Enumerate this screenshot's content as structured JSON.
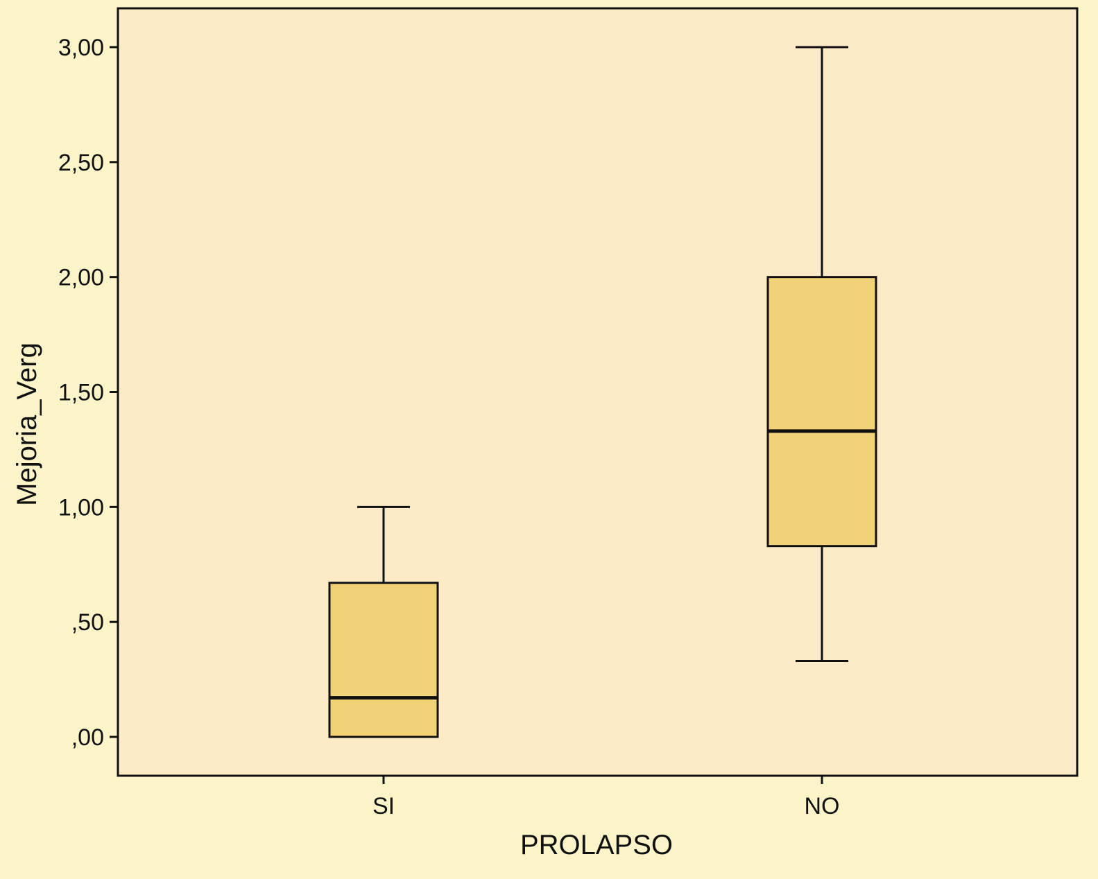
{
  "chart_data": {
    "type": "boxplot",
    "xlabel": "PROLAPSO",
    "ylabel": "Mejoria_Verg",
    "ylim": [
      -0.17,
      3.17
    ],
    "yticks": [
      {
        "value": 0.0,
        "label": ",00"
      },
      {
        "value": 0.5,
        "label": ",50"
      },
      {
        "value": 1.0,
        "label": "1,00"
      },
      {
        "value": 1.5,
        "label": "1,50"
      },
      {
        "value": 2.0,
        "label": "2,00"
      },
      {
        "value": 2.5,
        "label": "2,50"
      },
      {
        "value": 3.0,
        "label": "3,00"
      }
    ],
    "categories": [
      "SI",
      "NO"
    ],
    "boxes": [
      {
        "category": "SI",
        "whisker_low": 0.0,
        "q1": 0.0,
        "median": 0.17,
        "q3": 0.67,
        "whisker_high": 1.0
      },
      {
        "category": "NO",
        "whisker_low": 0.33,
        "q1": 0.83,
        "median": 1.33,
        "q3": 2.0,
        "whisker_high": 3.0
      }
    ],
    "grid": false,
    "colors": {
      "background": "#fef4c9",
      "plot_area": "#fdebc8",
      "box_fill": "#f1d277",
      "line": "#111111"
    }
  }
}
